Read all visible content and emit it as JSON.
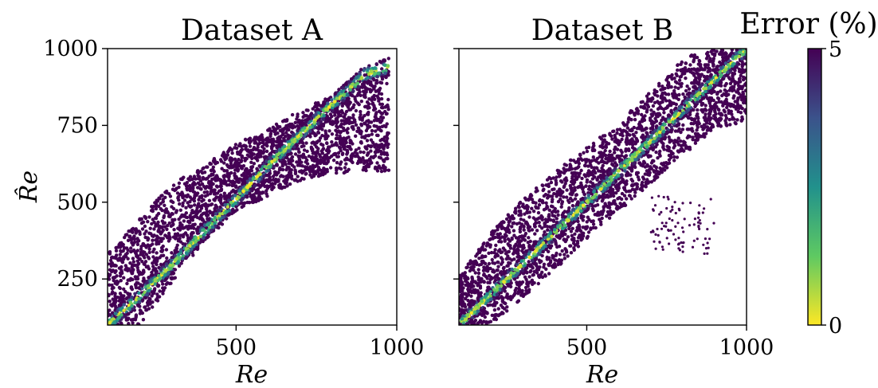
{
  "colors": {
    "low_error": "#fde725",
    "mid_error": "#21918c",
    "high_error": "#440154"
  },
  "colorbar": {
    "label": "Error (%)",
    "min_label": "0",
    "max_label": "5",
    "range": [
      0,
      5
    ],
    "colormap": "viridis-reversed"
  },
  "shared_y_axis": {
    "label": "R̂e",
    "ylim": [
      100,
      1000
    ],
    "ticks": [
      250,
      500,
      750,
      1000
    ],
    "tick_labels": [
      "250",
      "500",
      "750",
      "1000"
    ]
  },
  "chart_data": [
    {
      "type": "scatter",
      "title": "Dataset A",
      "xlabel": "Re",
      "ylabel": "R̂e",
      "xlim": [
        100,
        1000
      ],
      "ylim": [
        100,
        1000
      ],
      "x_ticks": [
        500,
        1000
      ],
      "x_tick_labels": [
        "500",
        "1000"
      ],
      "grid": false,
      "band": {
        "x": [
          100,
          200,
          300,
          400,
          500,
          600,
          700,
          800,
          900,
          975
        ],
        "upper": [
          330,
          445,
          560,
          620,
          690,
          740,
          800,
          850,
          920,
          940
        ],
        "lower": [
          100,
          100,
          240,
          370,
          470,
          520,
          570,
          590,
          600,
          600
        ],
        "diagonal": [
          100,
          195,
          295,
          405,
          510,
          620,
          720,
          820,
          915,
          940
        ]
      }
    },
    {
      "type": "scatter",
      "title": "Dataset B",
      "xlabel": "Re",
      "ylabel": "",
      "xlim": [
        100,
        1000
      ],
      "ylim": [
        100,
        1000
      ],
      "x_ticks": [
        500,
        1000
      ],
      "x_tick_labels": [
        "500",
        "1000"
      ],
      "grid": false,
      "band": {
        "x": [
          100,
          200,
          300,
          400,
          500,
          600,
          700,
          800,
          900,
          1000
        ],
        "upper": [
          260,
          400,
          510,
          600,
          680,
          760,
          860,
          970,
          1000,
          1000
        ],
        "lower": [
          100,
          100,
          190,
          280,
          380,
          470,
          560,
          650,
          740,
          760
        ],
        "diagonal": [
          100,
          200,
          300,
          400,
          500,
          600,
          700,
          800,
          900,
          1000
        ]
      },
      "outlier_cluster": {
        "x_range": [
          700,
          900
        ],
        "y_range": [
          330,
          520
        ]
      }
    }
  ]
}
